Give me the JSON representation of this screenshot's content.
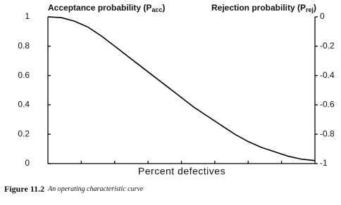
{
  "chart_data": {
    "type": "line",
    "y_label": {
      "text": "Acceptance probability (P",
      "sub": "acc",
      "close": ")"
    },
    "y2_label": {
      "text": "Rejection probability (P",
      "sub": "rej",
      "close": ")"
    },
    "x_label": "Percent defectives",
    "caption": {
      "number": "Figure 11.2",
      "text": "An operating characteristic curve"
    },
    "x": [
      0,
      0.05,
      0.1,
      0.15,
      0.2,
      0.25,
      0.3,
      0.35,
      0.4,
      0.45,
      0.5,
      0.55,
      0.6,
      0.65,
      0.7,
      0.75,
      0.8,
      0.85,
      0.9,
      0.95,
      1
    ],
    "values": [
      1,
      0.995,
      0.97,
      0.93,
      0.87,
      0.8,
      0.73,
      0.66,
      0.59,
      0.52,
      0.45,
      0.38,
      0.32,
      0.26,
      0.2,
      0.15,
      0.11,
      0.08,
      0.05,
      0.03,
      0.02
    ],
    "color": "#000000",
    "xlim": [
      0,
      1
    ],
    "ylim": [
      0,
      1
    ],
    "yticks": [
      0,
      0.2,
      0.4,
      0.6,
      0.8,
      1
    ],
    "y2lim": [
      -1,
      0
    ],
    "y2ticks": [
      0,
      -0.2,
      -0.4,
      -0.6,
      -0.8,
      -1
    ]
  }
}
